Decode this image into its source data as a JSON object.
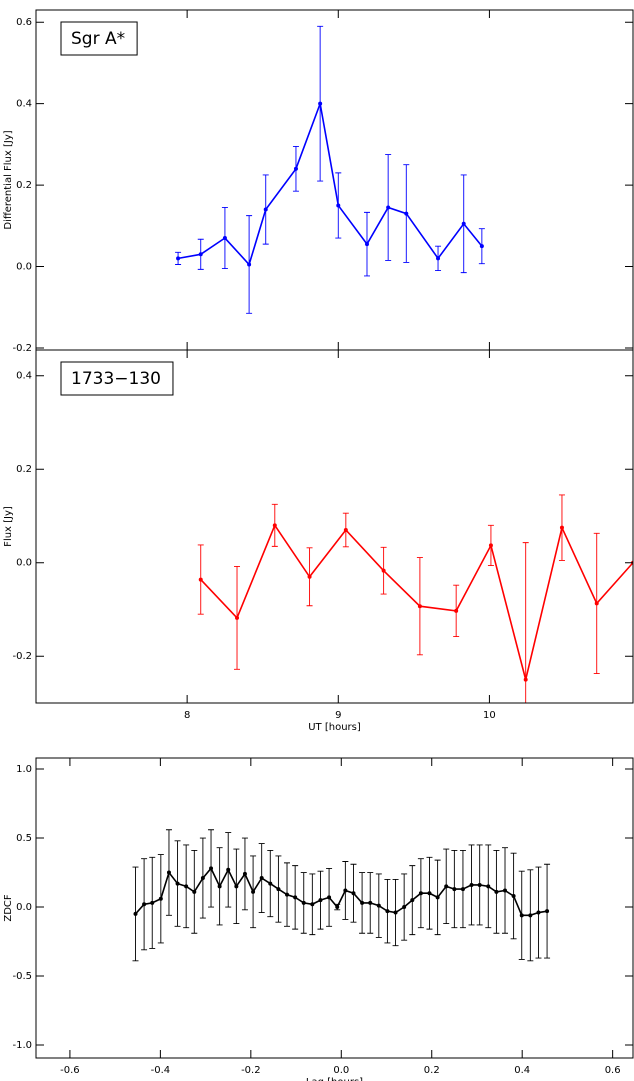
{
  "chart_data": [
    {
      "type": "line",
      "label": "Sgr A*",
      "ylabel": "Differential Flux [Jy]",
      "x": [
        7.94,
        8.09,
        8.25,
        8.41,
        8.52,
        8.72,
        8.88,
        9.0,
        9.19,
        9.33,
        9.45,
        9.66,
        9.83,
        9.95
      ],
      "series": [
        {
          "color": "#0000ff",
          "values": [
            0.02,
            0.03,
            0.07,
            0.005,
            0.14,
            0.24,
            0.4,
            0.15,
            0.055,
            0.145,
            0.13,
            0.02,
            0.105,
            0.05
          ],
          "errors": [
            0.015,
            0.037,
            0.075,
            0.12,
            0.085,
            0.055,
            0.19,
            0.08,
            0.078,
            0.13,
            0.12,
            0.03,
            0.12,
            0.043
          ]
        }
      ],
      "xlim": [
        7.0,
        10.95
      ],
      "xticks": [
        8,
        9,
        10
      ],
      "ylim": [
        -0.205,
        0.63
      ],
      "yticks": [
        -0.2,
        {
          "value": 0,
          "label": "0.0"
        },
        0.2,
        0.4,
        0.6
      ]
    },
    {
      "type": "line",
      "label": "1733−130",
      "ylabel": "Flux [Jy]",
      "xlabel": "UT [hours]",
      "x": [
        8.09,
        8.33,
        8.58,
        8.81,
        9.05,
        9.3,
        9.54,
        9.78,
        10.01,
        10.24,
        10.48,
        10.71,
        10.95
      ],
      "series": [
        {
          "color": "#ff0000",
          "values": [
            -0.036,
            -0.118,
            0.08,
            -0.03,
            0.07,
            -0.017,
            -0.093,
            -0.103,
            0.037,
            -0.25,
            0.075,
            -0.087,
            0.0
          ],
          "errors": [
            0.074,
            0.11,
            0.045,
            0.062,
            0.036,
            0.05,
            0.104,
            0.055,
            0.043,
            0.293,
            0.07,
            0.15,
            null
          ]
        }
      ],
      "xlim": [
        7.0,
        10.95
      ],
      "xticks": [
        8,
        9,
        10
      ],
      "ylim": [
        -0.3,
        0.455
      ],
      "yticks": [
        -0.2,
        {
          "value": 0,
          "label": "0.0"
        },
        0.2,
        0.4
      ]
    },
    {
      "type": "line",
      "ylabel": "ZDCF",
      "xlabel": "Lag [hours]",
      "x": [
        -0.455,
        -0.436,
        -0.418,
        -0.399,
        -0.381,
        -0.362,
        -0.343,
        -0.325,
        -0.306,
        -0.288,
        -0.269,
        -0.25,
        -0.232,
        -0.213,
        -0.195,
        -0.176,
        -0.157,
        -0.139,
        -0.12,
        -0.102,
        -0.083,
        -0.064,
        -0.046,
        -0.027,
        -0.009,
        0.009,
        0.027,
        0.046,
        0.064,
        0.083,
        0.102,
        0.12,
        0.139,
        0.157,
        0.176,
        0.195,
        0.213,
        0.232,
        0.25,
        0.269,
        0.288,
        0.306,
        0.325,
        0.343,
        0.362,
        0.381,
        0.399,
        0.418,
        0.436,
        0.455
      ],
      "series": [
        {
          "color": "#000000",
          "values": [
            -0.05,
            0.02,
            0.03,
            0.06,
            0.25,
            0.17,
            0.15,
            0.11,
            0.21,
            0.28,
            0.15,
            0.27,
            0.15,
            0.24,
            0.11,
            0.21,
            0.17,
            0.13,
            0.09,
            0.07,
            0.03,
            0.02,
            0.05,
            0.07,
            0.0,
            0.12,
            0.1,
            0.03,
            0.03,
            0.01,
            -0.03,
            -0.04,
            0.0,
            0.05,
            0.1,
            0.1,
            0.07,
            0.15,
            0.13,
            0.13,
            0.16,
            0.16,
            0.15,
            0.11,
            0.12,
            0.08,
            -0.06,
            -0.06,
            -0.04,
            -0.03
          ],
          "errors": [
            0.34,
            0.33,
            0.33,
            0.32,
            0.31,
            0.31,
            0.3,
            0.3,
            0.29,
            0.28,
            0.28,
            0.27,
            0.27,
            0.26,
            0.26,
            0.25,
            0.24,
            0.24,
            0.23,
            0.23,
            0.22,
            0.22,
            0.21,
            0.21,
            0.02,
            0.21,
            0.21,
            0.22,
            0.22,
            0.23,
            0.23,
            0.24,
            0.24,
            0.25,
            0.25,
            0.26,
            0.27,
            0.27,
            0.28,
            0.28,
            0.29,
            0.29,
            0.3,
            0.3,
            0.31,
            0.31,
            0.32,
            0.33,
            0.33,
            0.34
          ]
        }
      ],
      "xlim": [
        -0.675,
        0.645
      ],
      "xticks": [
        -0.6,
        -0.4,
        -0.2,
        {
          "value": 0,
          "label": "0.0"
        },
        0.2,
        0.4,
        0.6
      ],
      "ylim": [
        -1.094,
        1.08
      ],
      "yticks": [
        {
          "value": -1,
          "label": "-1.0"
        },
        -0.5,
        {
          "value": 0,
          "label": "0.0"
        },
        0.5,
        {
          "value": 1,
          "label": "1.0"
        }
      ]
    }
  ]
}
